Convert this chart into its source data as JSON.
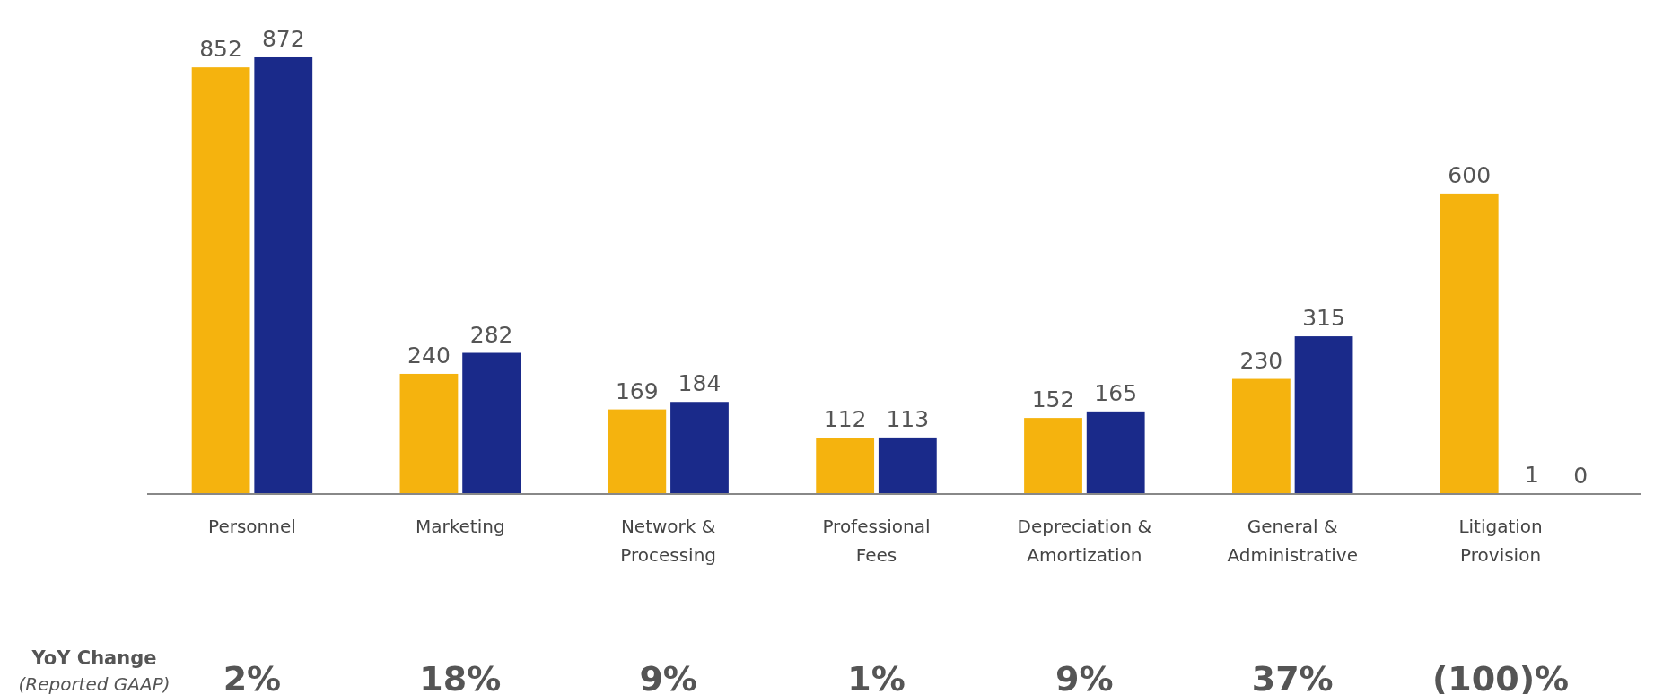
{
  "chart_data": {
    "type": "bar",
    "categories": [
      "Personnel",
      "Marketing",
      "Network & Processing",
      "Professional Fees",
      "Depreciation & Amortization",
      "General & Administrative",
      "Litigation Provision"
    ],
    "series": [
      {
        "color": "#f5b30e",
        "values": [
          852,
          240,
          169,
          112,
          152,
          230,
          600
        ]
      },
      {
        "color": "#1a2a8a",
        "values": [
          872,
          282,
          184,
          113,
          165,
          315,
          1
        ]
      }
    ],
    "data_labels": true,
    "annotations": [
      "YoY Change",
      "(Reported GAAP)",
      "2%",
      "18%",
      "9%",
      "1%",
      "9%",
      "37%",
      "(100)%",
      "0"
    ]
  }
}
